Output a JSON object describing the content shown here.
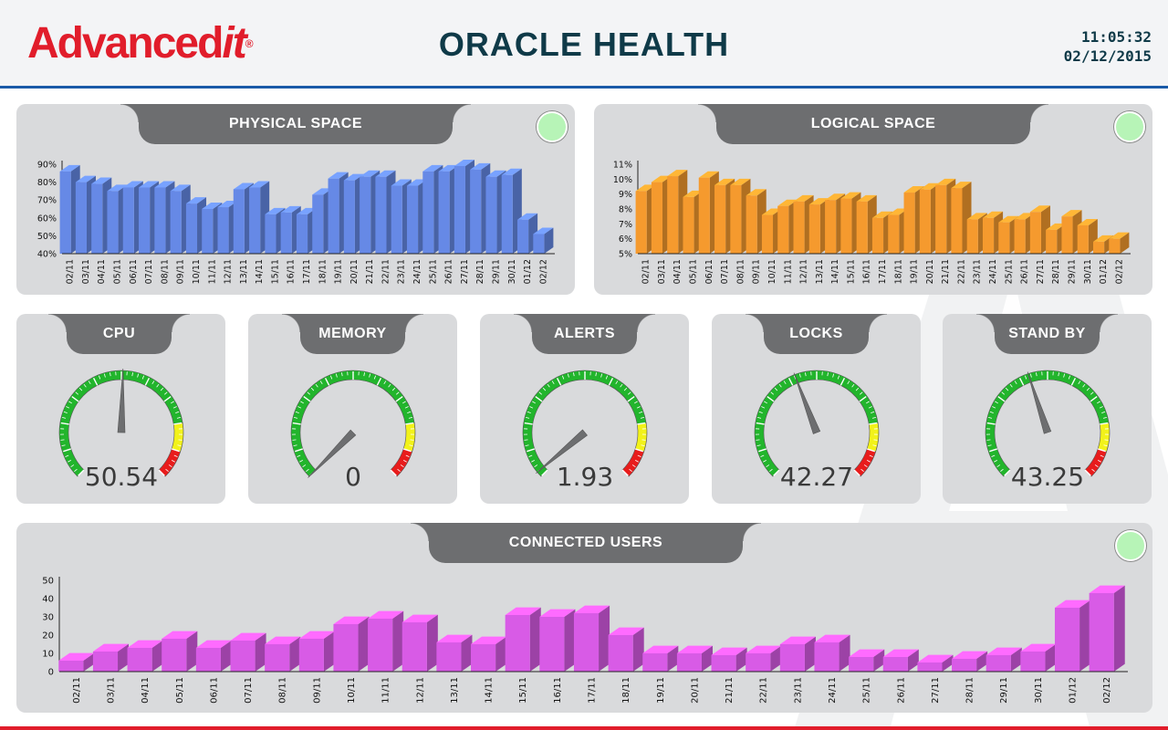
{
  "header": {
    "logo_text": "Advancedit",
    "title": "ORACLE HEALTH",
    "time": "11:05:32",
    "date": "02/12/2015"
  },
  "colors": {
    "physical_bar": "#6689e6",
    "logical_bar": "#f59a2e",
    "users_bar": "#d85be6",
    "tab": "#6d6e70",
    "panel": "#d9dadc",
    "status_ok": "#b7f4b7"
  },
  "panels": {
    "physical_space": {
      "title": "PHYSICAL SPACE",
      "status": "ok"
    },
    "logical_space": {
      "title": "LOGICAL SPACE",
      "status": "ok"
    },
    "connected_users": {
      "title": "CONNECTED USERS",
      "status": "ok"
    }
  },
  "gauges": [
    {
      "title": "CPU",
      "value": "50.54",
      "needle": 50.54,
      "max": 100
    },
    {
      "title": "MEMORY",
      "value": "0",
      "needle": 0,
      "max": 100
    },
    {
      "title": "ALERTS",
      "value": "1.93",
      "needle": 1.93,
      "max": 100
    },
    {
      "title": "LOCKS",
      "value": "42.27",
      "needle": 42.27,
      "max": 100
    },
    {
      "title": "STAND BY",
      "value": "43.25",
      "needle": 43.25,
      "max": 100
    }
  ],
  "chart_data": [
    {
      "type": "bar",
      "title": "PHYSICAL SPACE",
      "categories": [
        "02/11",
        "03/11",
        "04/11",
        "05/11",
        "06/11",
        "07/11",
        "08/11",
        "09/11",
        "10/11",
        "11/11",
        "12/11",
        "13/11",
        "14/11",
        "15/11",
        "16/11",
        "17/11",
        "18/11",
        "19/11",
        "20/11",
        "21/11",
        "22/11",
        "23/11",
        "24/11",
        "25/11",
        "26/11",
        "27/11",
        "28/11",
        "29/11",
        "30/11",
        "01/12",
        "02/12"
      ],
      "values": [
        86,
        80,
        79,
        75,
        77,
        77,
        77,
        75,
        68,
        65,
        66,
        76,
        77,
        62,
        63,
        62,
        73,
        82,
        81,
        83,
        83,
        78,
        78,
        86,
        86,
        89,
        87,
        83,
        84,
        59,
        51
      ],
      "ylim": [
        40,
        90
      ],
      "yticks": [
        "40%",
        "50%",
        "60%",
        "70%",
        "80%",
        "90%"
      ],
      "ytick_values": [
        40,
        50,
        60,
        70,
        80,
        90
      ]
    },
    {
      "type": "bar",
      "title": "LOGICAL SPACE",
      "categories": [
        "02/11",
        "03/11",
        "04/11",
        "05/11",
        "06/11",
        "07/11",
        "08/11",
        "09/11",
        "10/11",
        "11/11",
        "12/11",
        "13/11",
        "14/11",
        "15/11",
        "16/11",
        "17/11",
        "18/11",
        "19/11",
        "20/11",
        "21/11",
        "22/11",
        "23/11",
        "24/11",
        "25/11",
        "26/11",
        "27/11",
        "28/11",
        "29/11",
        "30/11",
        "01/12",
        "02/12"
      ],
      "values": [
        9.2,
        9.8,
        10.2,
        8.8,
        10.1,
        9.6,
        9.6,
        8.9,
        7.6,
        8.2,
        8.5,
        8.3,
        8.6,
        8.7,
        8.5,
        7.4,
        7.6,
        9.1,
        9.3,
        9.6,
        9.4,
        7.3,
        7.4,
        7.1,
        7.3,
        7.8,
        6.6,
        7.5,
        6.9,
        5.8,
        6.0
      ],
      "ylim": [
        5,
        11
      ],
      "yticks": [
        "5%",
        "6%",
        "7%",
        "8%",
        "9%",
        "10%",
        "11%"
      ],
      "ytick_values": [
        5,
        6,
        7,
        8,
        9,
        10,
        11
      ]
    },
    {
      "type": "bar",
      "title": "CONNECTED USERS",
      "categories": [
        "02/11",
        "03/11",
        "04/11",
        "05/11",
        "06/11",
        "07/11",
        "08/11",
        "09/11",
        "10/11",
        "11/11",
        "12/11",
        "13/11",
        "14/11",
        "15/11",
        "16/11",
        "17/11",
        "18/11",
        "19/11",
        "20/11",
        "21/11",
        "22/11",
        "23/11",
        "24/11",
        "25/11",
        "26/11",
        "27/11",
        "28/11",
        "29/11",
        "30/11",
        "01/12",
        "02/12"
      ],
      "values": [
        6,
        11,
        13,
        18,
        13,
        17,
        15,
        18,
        26,
        29,
        27,
        16,
        15,
        31,
        30,
        32,
        20,
        10,
        10,
        9,
        10,
        15,
        16,
        8,
        8,
        5,
        7,
        9,
        11,
        35,
        43
      ],
      "ylim": [
        0,
        50
      ],
      "yticks": [
        "0",
        "10",
        "20",
        "30",
        "40",
        "50"
      ],
      "ytick_values": [
        0,
        10,
        20,
        30,
        40,
        50
      ]
    }
  ]
}
